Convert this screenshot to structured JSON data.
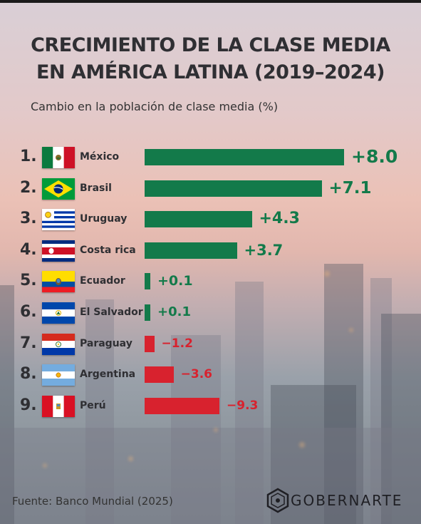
{
  "colors": {
    "positive": "#137a4a",
    "negative": "#d8222e",
    "title": "#2f2f33"
  },
  "header": {
    "title_line1": "CRECIMIENTO DE LA CLASE MEDIA",
    "title_line2": "EN AMÉRICA LATINA (2019–2024)",
    "subtitle": "Cambio en la población de clase media (%)"
  },
  "chart_data": {
    "type": "bar",
    "orientation": "horizontal",
    "title": "CRECIMIENTO DE LA CLASE MEDIA EN AMÉRICA LATINA (2019–2024)",
    "subtitle": "Cambio en la población de clase media (%)",
    "categories": [
      "México",
      "Brasil",
      "Uruguay",
      "Costa rica",
      "Ecuador",
      "El Salvador",
      "Paraguay",
      "Argentina",
      "Perú"
    ],
    "ranks": [
      "1.",
      "2.",
      "3.",
      "4.",
      "5.",
      "6.",
      "7.",
      "8.",
      "9."
    ],
    "values": [
      8.0,
      7.1,
      4.3,
      3.7,
      0.1,
      0.1,
      -1.2,
      -3.6,
      -9.3
    ],
    "labels": [
      "+8.0",
      "+7.1",
      "+4.3",
      "+3.7",
      "+0.1",
      "+0.1",
      "−1.2",
      "−3.6",
      "−9.3"
    ],
    "flags": [
      "mexico-flag-icon",
      "brazil-flag-icon",
      "uruguay-flag-icon",
      "costa-rica-flag-icon",
      "ecuador-flag-icon",
      "el-salvador-flag-icon",
      "paraguay-flag-icon",
      "argentina-flag-icon",
      "peru-flag-icon"
    ],
    "grid": false,
    "legend": "none"
  },
  "footer": {
    "source": "Fuente: Banco Mundial (2025)",
    "brand": "GOBERNARTE",
    "brand_icon": "gobernarte-logo-icon"
  }
}
